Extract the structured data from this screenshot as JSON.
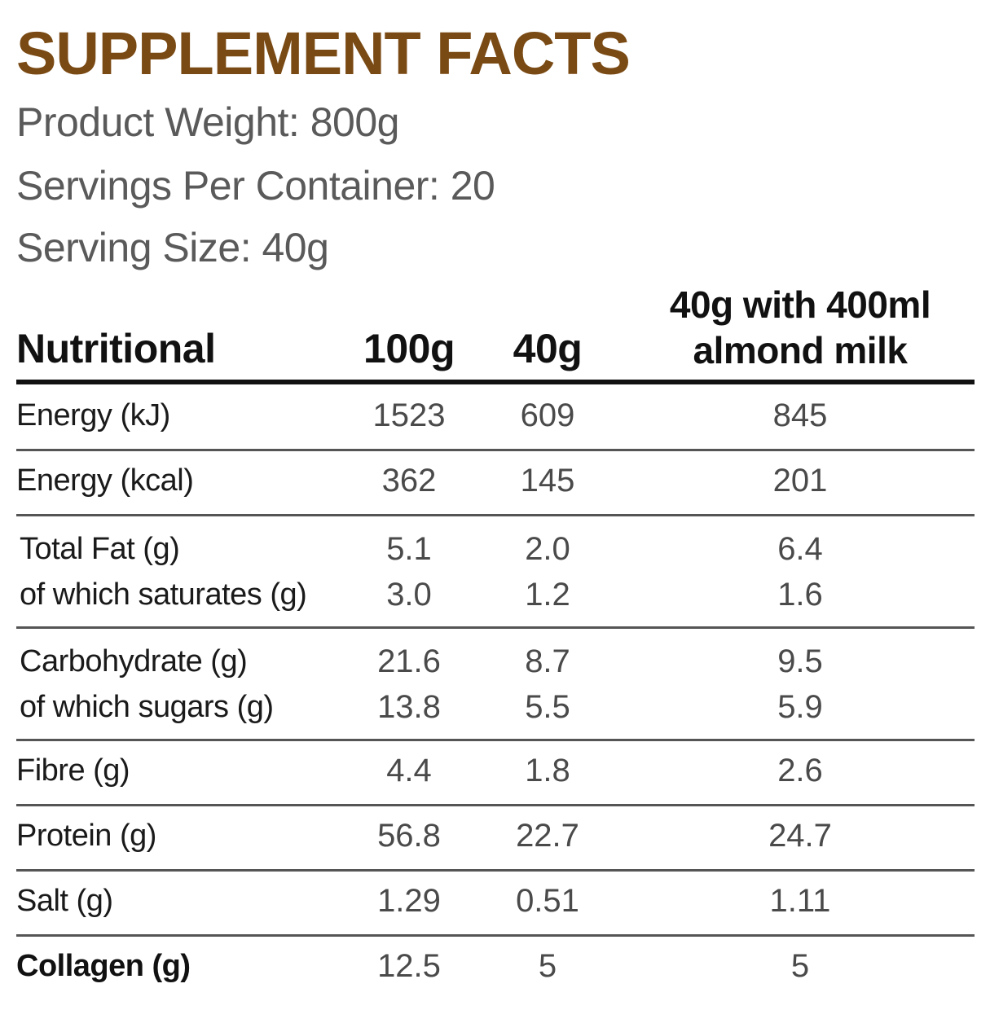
{
  "title": "SUPPLEMENT FACTS",
  "product_weight": "Product Weight: 800g",
  "servings_per_container": "Servings Per Container: 20",
  "serving_size": "Serving Size: 40g",
  "colors": {
    "title": "#7a4a14",
    "meta_text": "#5a5a5a",
    "header_text": "#111111",
    "value_text": "#4a4a4a"
  },
  "table": {
    "headers": {
      "label": "Nutritional",
      "col1": "100g",
      "col2": "40g",
      "col3_line1": "40g with 400ml",
      "col3_line2": "almond milk"
    },
    "rows": [
      {
        "lines": [
          {
            "label": "Energy (kJ)",
            "v1": "1523",
            "v2": "609",
            "v3": "845"
          }
        ]
      },
      {
        "lines": [
          {
            "label": "Energy (kcal)",
            "v1": "362",
            "v2": "145",
            "v3": "201"
          }
        ]
      },
      {
        "lines": [
          {
            "label": "Total Fat (g)",
            "v1": "5.1",
            "v2": "2.0",
            "v3": "6.4"
          },
          {
            "label": "of which saturates (g)",
            "v1": "3.0",
            "v2": "1.2",
            "v3": "1.6"
          }
        ]
      },
      {
        "lines": [
          {
            "label": "Carbohydrate (g)",
            "v1": "21.6",
            "v2": "8.7",
            "v3": "9.5"
          },
          {
            "label": "of which sugars (g)",
            "v1": "13.8",
            "v2": "5.5",
            "v3": "5.9"
          }
        ]
      },
      {
        "lines": [
          {
            "label": "Fibre (g)",
            "v1": "4.4",
            "v2": "1.8",
            "v3": "2.6"
          }
        ]
      },
      {
        "lines": [
          {
            "label": "Protein (g)",
            "v1": "56.8",
            "v2": "22.7",
            "v3": "24.7"
          }
        ]
      },
      {
        "lines": [
          {
            "label": "Salt (g)",
            "v1": "1.29",
            "v2": "0.51",
            "v3": "1.11"
          }
        ]
      },
      {
        "lines": [
          {
            "label": "Collagen (g)",
            "v1": "12.5",
            "v2": "5",
            "v3": "5"
          }
        ]
      }
    ]
  }
}
